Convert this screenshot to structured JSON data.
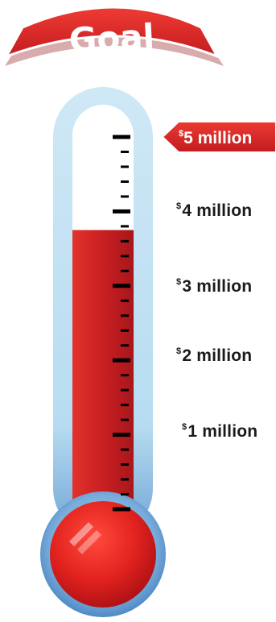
{
  "banner": {
    "title": "Goal"
  },
  "goal_marker": {
    "currency": "$",
    "amount": "5 million"
  },
  "scale": [
    {
      "currency": "$",
      "amount": "4 million"
    },
    {
      "currency": "$",
      "amount": "3 million"
    },
    {
      "currency": "$",
      "amount": "2 million"
    },
    {
      "currency": "$",
      "amount": "1 million"
    }
  ],
  "thermometer": {
    "progress_fraction": 0.75,
    "goal_value_millions": 5
  },
  "colors": {
    "banner_red": "#d9262b",
    "mercury_red": "#c81f22",
    "tube_light_blue": "#bfe1f4",
    "bulb_blue_dark": "#4c86c2",
    "tick_black": "#000000"
  }
}
